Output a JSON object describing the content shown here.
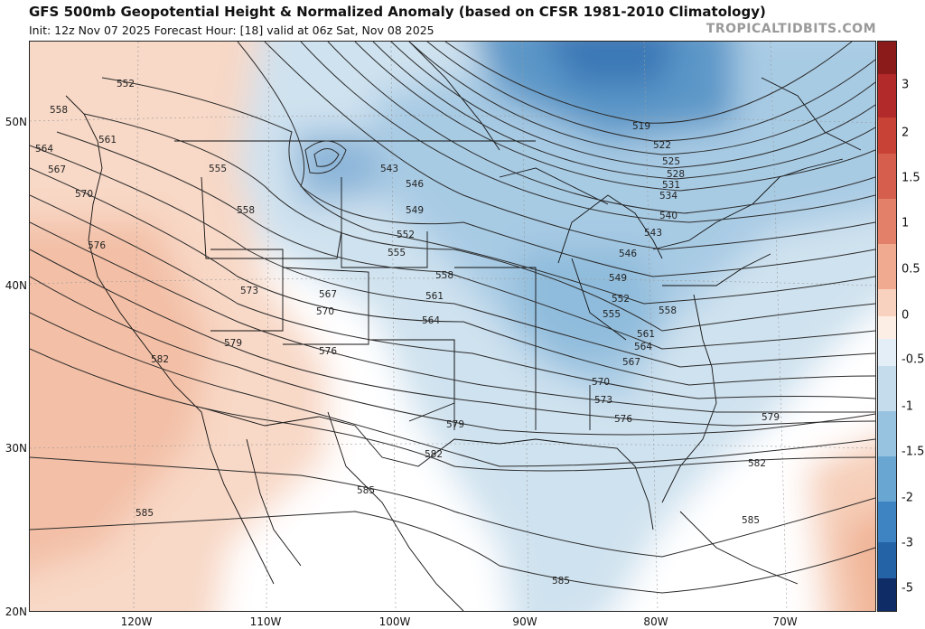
{
  "header": {
    "title": "GFS 500mb Geopotential Height & Normalized Anomaly (based on CFSR 1981-2010 Climatology)",
    "subtitle": "Init: 12z Nov 07 2025   Forecast Hour: [18]   valid at 06z Sat, Nov 08 2025",
    "brand": "TROPICALTIDBITS.COM"
  },
  "axes": {
    "lat_labels": [
      "50N",
      "40N",
      "30N",
      "20N"
    ],
    "lon_labels": [
      "120W",
      "110W",
      "100W",
      "90W",
      "80W",
      "70W"
    ]
  },
  "colorbar": {
    "labels": [
      "3",
      "2",
      "1.5",
      "1",
      "0.5",
      "0",
      "-0.5",
      "-1",
      "-1.5",
      "-2",
      "-3",
      "-5"
    ],
    "colors": [
      "#8b1a1a",
      "#b22a2a",
      "#cc4a40",
      "#dc6f5e",
      "#e89a84",
      "#f3c2ac",
      "#fbe3d5",
      "#ffffff",
      "#dbe8f2",
      "#b9d4e8",
      "#8fbcdc",
      "#5e9ccd",
      "#3a7fbe",
      "#2363a6",
      "#143f80",
      "#0b2555"
    ]
  },
  "contours": {
    "labels": [
      "519",
      "522",
      "525",
      "528",
      "531",
      "534",
      "540",
      "543",
      "546",
      "549",
      "552",
      "555",
      "558",
      "561",
      "564",
      "567",
      "570",
      "573",
      "576",
      "579",
      "582",
      "585"
    ],
    "low_center_label": "543"
  }
}
